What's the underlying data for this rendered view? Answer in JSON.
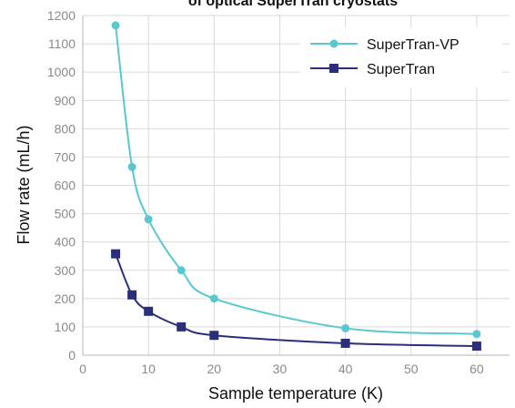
{
  "chart_data": {
    "type": "line",
    "title": "of optical SuperTran cryostats",
    "xlabel": "Sample temperature (K)",
    "ylabel": "Flow rate (mL/h)",
    "xlim": [
      0,
      65
    ],
    "ylim": [
      0,
      1200
    ],
    "xticks": [
      0,
      10,
      20,
      30,
      40,
      50,
      60
    ],
    "yticks": [
      0,
      100,
      200,
      300,
      400,
      500,
      600,
      700,
      800,
      900,
      1000,
      1100,
      1200
    ],
    "grid": true,
    "legend": "top-right",
    "series": [
      {
        "name": "SuperTran-VP",
        "color": "#5bc8cf",
        "marker": "circle",
        "x": [
          5,
          7.5,
          10,
          15,
          20,
          40,
          60
        ],
        "y": [
          1165,
          665,
          480,
          300,
          200,
          95,
          75
        ]
      },
      {
        "name": "SuperTran",
        "color": "#2b2f7a",
        "marker": "square",
        "x": [
          5,
          7.5,
          10,
          15,
          20,
          40,
          60
        ],
        "y": [
          358,
          213,
          155,
          100,
          70,
          42,
          32
        ]
      }
    ]
  }
}
